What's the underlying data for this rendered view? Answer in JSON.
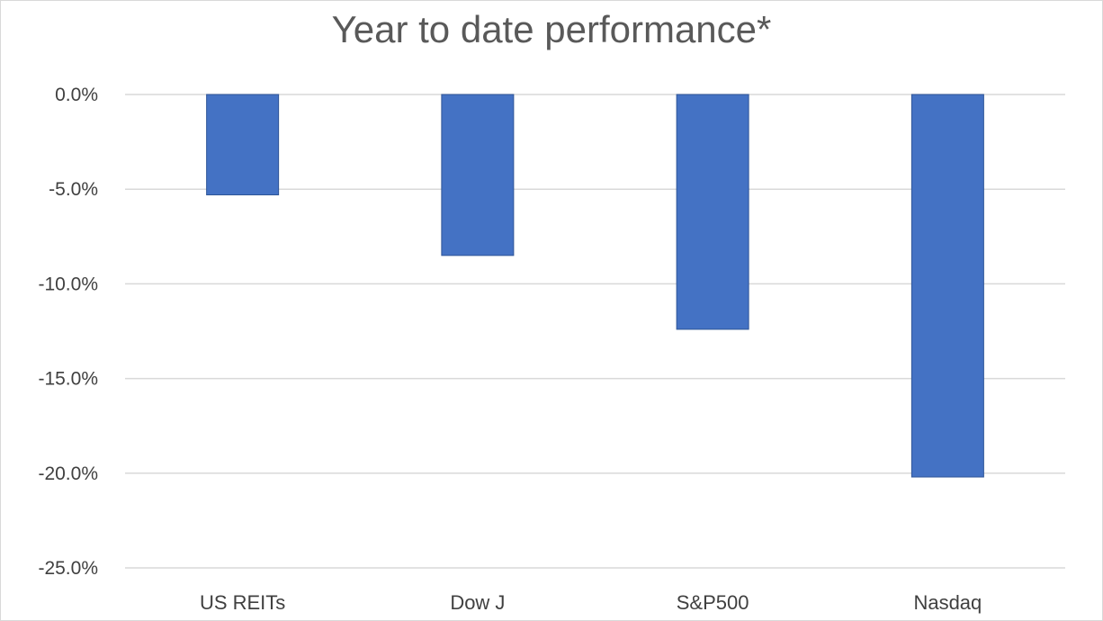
{
  "chart_data": {
    "type": "bar",
    "title": "Year to date performance*",
    "categories": [
      "US REITs",
      "Dow J",
      "S&P500",
      "Nasdaq"
    ],
    "values": [
      -5.3,
      -8.5,
      -12.4,
      -20.2
    ],
    "ylim": [
      -25.0,
      0.0
    ],
    "yticks": [
      {
        "value": 0.0,
        "label": "0.0%"
      },
      {
        "value": -5.0,
        "label": "-5.0%"
      },
      {
        "value": -10.0,
        "label": "-10.0%"
      },
      {
        "value": -15.0,
        "label": "-15.0%"
      },
      {
        "value": -20.0,
        "label": "-20.0%"
      },
      {
        "value": -25.0,
        "label": "-25.0%"
      }
    ],
    "xlabel": "",
    "ylabel": "",
    "grid": true,
    "legend": "none",
    "colors": {
      "bar": "#4472c4",
      "bar_edge": "#2f5597",
      "grid": "#d9d9d9",
      "text": "#404040",
      "title": "#595959"
    }
  }
}
